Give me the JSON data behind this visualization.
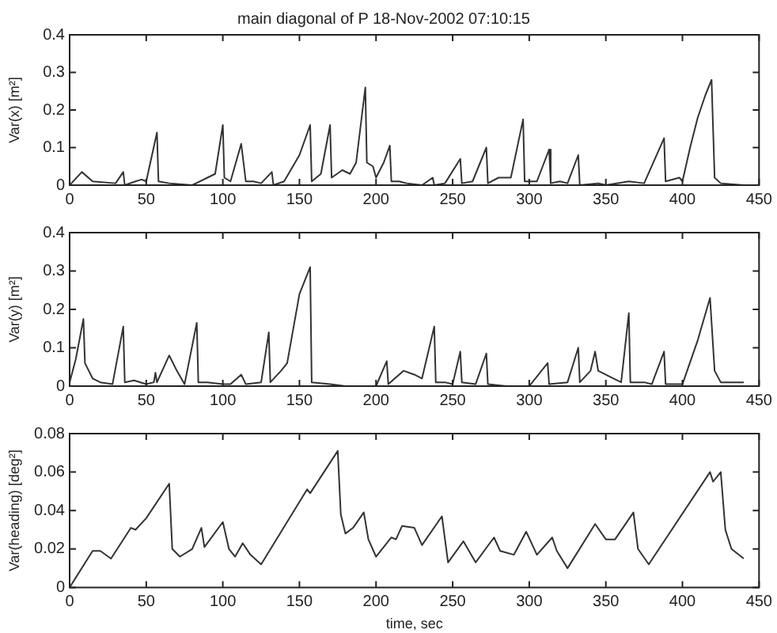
{
  "chart_data": [
    {
      "type": "line",
      "title": "main diagonal of P 18-Nov-2002 07:10:15",
      "ylabel": "Var(x) [m²]",
      "xlim": [
        0,
        450
      ],
      "ylim": [
        0,
        0.4
      ],
      "xticks": [
        0,
        50,
        100,
        150,
        200,
        250,
        300,
        350,
        400,
        450
      ],
      "yticks": [
        0,
        0.1,
        0.2,
        0.3,
        0.4
      ],
      "grid": false,
      "legend": false,
      "marker": "none",
      "series": [
        {
          "color": "#333333",
          "x": [
            0,
            8,
            15,
            30,
            35,
            36,
            43,
            47,
            50,
            57,
            58,
            65,
            80,
            90,
            95,
            100,
            101,
            105,
            112,
            115,
            120,
            125,
            132,
            133,
            140,
            150,
            157,
            158,
            164,
            170,
            171,
            178,
            183,
            187,
            193,
            194,
            198,
            200,
            205,
            209,
            210,
            215,
            220,
            230,
            237,
            238,
            245,
            255,
            256,
            263,
            272,
            273,
            280,
            288,
            296,
            297,
            305,
            313,
            314,
            320,
            325,
            332,
            333,
            345,
            350,
            365,
            375,
            388,
            389,
            398,
            400,
            405,
            410,
            415,
            419,
            421,
            425,
            440
          ],
          "values": [
            0,
            0.035,
            0.01,
            0.005,
            0.035,
            0,
            0.01,
            0.015,
            0.01,
            0.14,
            0.01,
            0.005,
            0,
            0.02,
            0.03,
            0.16,
            0.02,
            0.01,
            0.11,
            0.01,
            0.01,
            0.005,
            0.035,
            0,
            0.01,
            0.08,
            0.16,
            0.01,
            0.03,
            0.16,
            0.02,
            0.04,
            0.03,
            0.06,
            0.26,
            0.06,
            0.05,
            0.02,
            0.06,
            0.105,
            0.01,
            0.01,
            0.005,
            0,
            0.02,
            0,
            0.005,
            0.07,
            0.005,
            0.01,
            0.1,
            0.005,
            0.02,
            0.02,
            0.175,
            0.01,
            0.01,
            0.095,
            0.005,
            0.01,
            0.005,
            0.08,
            0,
            0.005,
            0,
            0.01,
            0.005,
            0.125,
            0.01,
            0.02,
            0.01,
            0.1,
            0.18,
            0.24,
            0.28,
            0.02,
            0.005,
            0
          ]
        }
      ]
    },
    {
      "type": "line",
      "ylabel": "Var(y) [m²]",
      "xlim": [
        0,
        450
      ],
      "ylim": [
        0,
        0.4
      ],
      "xticks": [
        0,
        50,
        100,
        150,
        200,
        250,
        300,
        350,
        400,
        450
      ],
      "yticks": [
        0,
        0.1,
        0.2,
        0.3,
        0.4
      ],
      "grid": false,
      "legend": false,
      "marker": "none",
      "series": [
        {
          "color": "#333333",
          "x": [
            0,
            4,
            9,
            10,
            15,
            20,
            28,
            35,
            36,
            42,
            50,
            55,
            56,
            57,
            65,
            70,
            75,
            83,
            84,
            90,
            100,
            105,
            112,
            115,
            125,
            130,
            131,
            138,
            142,
            150,
            157,
            158,
            170,
            180,
            200,
            207,
            208,
            218,
            225,
            230,
            238,
            239,
            245,
            250,
            255,
            256,
            265,
            272,
            273,
            285,
            300,
            312,
            313,
            325,
            332,
            333,
            340,
            343,
            345,
            355,
            360,
            365,
            366,
            375,
            380,
            388,
            389,
            400,
            410,
            418,
            421,
            425,
            440
          ],
          "values": [
            0.01,
            0.07,
            0.175,
            0.06,
            0.02,
            0.01,
            0.005,
            0.155,
            0.01,
            0.015,
            0.005,
            0.01,
            0.035,
            0.01,
            0.08,
            0.04,
            0.005,
            0.165,
            0.01,
            0.01,
            0.005,
            0.005,
            0.03,
            0.005,
            0.01,
            0.14,
            0.01,
            0.04,
            0.06,
            0.24,
            0.31,
            0.01,
            0.005,
            0,
            0,
            0.065,
            0.005,
            0.04,
            0.03,
            0.02,
            0.155,
            0.01,
            0.01,
            0.005,
            0.09,
            0.01,
            0.005,
            0.085,
            0.005,
            0,
            0,
            0.06,
            0.005,
            0.01,
            0.1,
            0.01,
            0.04,
            0.09,
            0.04,
            0.02,
            0.01,
            0.19,
            0.01,
            0.01,
            0.005,
            0.09,
            0.005,
            0.005,
            0.12,
            0.23,
            0.04,
            0.01,
            0.01
          ]
        }
      ]
    },
    {
      "type": "line",
      "xlabel": "time, sec",
      "ylabel": "Var(heading) [deg²]",
      "xlim": [
        0,
        450
      ],
      "ylim": [
        0,
        0.08
      ],
      "xticks": [
        0,
        50,
        100,
        150,
        200,
        250,
        300,
        350,
        400,
        450
      ],
      "yticks": [
        0,
        0.02,
        0.04,
        0.06,
        0.08
      ],
      "grid": false,
      "legend": false,
      "marker": "none",
      "series": [
        {
          "color": "#333333",
          "x": [
            0,
            15,
            20,
            27,
            40,
            43,
            50,
            65,
            67,
            72,
            80,
            86,
            88,
            100,
            104,
            108,
            113,
            118,
            125,
            155,
            157,
            175,
            177,
            180,
            185,
            192,
            195,
            200,
            210,
            213,
            217,
            225,
            230,
            243,
            247,
            257,
            265,
            277,
            281,
            290,
            298,
            305,
            315,
            318,
            325,
            343,
            350,
            356,
            368,
            371,
            378,
            418,
            420,
            425,
            428,
            432,
            440
          ],
          "values": [
            0,
            0.019,
            0.019,
            0.015,
            0.031,
            0.03,
            0.036,
            0.054,
            0.02,
            0.016,
            0.02,
            0.031,
            0.021,
            0.034,
            0.02,
            0.016,
            0.023,
            0.017,
            0.012,
            0.051,
            0.049,
            0.071,
            0.038,
            0.028,
            0.031,
            0.039,
            0.025,
            0.016,
            0.026,
            0.025,
            0.032,
            0.031,
            0.022,
            0.037,
            0.013,
            0.024,
            0.013,
            0.026,
            0.019,
            0.017,
            0.029,
            0.017,
            0.026,
            0.019,
            0.01,
            0.033,
            0.025,
            0.025,
            0.039,
            0.02,
            0.012,
            0.06,
            0.055,
            0.06,
            0.03,
            0.02,
            0.015
          ]
        }
      ]
    }
  ]
}
